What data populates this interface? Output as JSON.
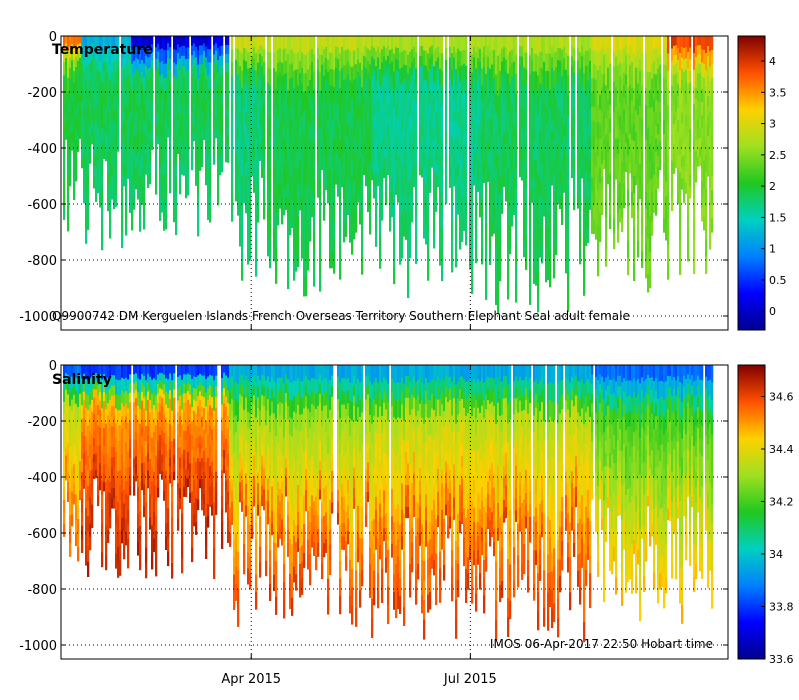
{
  "chart_data": [
    {
      "type": "heatmap",
      "panel": "top",
      "title": "Temperature",
      "annotation": "Q9900742 DM Kerguelen Islands French Overseas Territory Southern Elephant Seal adult female",
      "xlabel": "",
      "ylabel": "",
      "x_ticks": [
        "Apr 2015",
        "Jul 2015"
      ],
      "x_start": "2015-01-12",
      "x_end": "2015-10-16",
      "x_tick_dates": [
        "2015-04-01",
        "2015-07-01"
      ],
      "ylim": [
        -1050,
        0
      ],
      "y_ticks": [
        0,
        -200,
        -400,
        -600,
        -800,
        -1000
      ],
      "grid": true,
      "colorbar": {
        "min": -0.3,
        "max": 4.4,
        "ticks": [
          0,
          0.5,
          1,
          1.5,
          2,
          2.5,
          3,
          3.5,
          4
        ],
        "tick_labels": [
          "0",
          "0.5",
          "1",
          "1.5",
          "2",
          "2.5",
          "3",
          "3.5",
          "4"
        ]
      },
      "profile_segments": [
        {
          "start": "2015-01-12",
          "end": "2015-01-20",
          "surface": 3.6,
          "mid": 2.0,
          "deep": 1.9,
          "max_depth": 650
        },
        {
          "start": "2015-01-20",
          "end": "2015-02-10",
          "surface": 1.2,
          "mid": 1.9,
          "deep": 1.8,
          "max_depth": 700
        },
        {
          "start": "2015-02-10",
          "end": "2015-03-22",
          "surface": 0.1,
          "mid": 1.9,
          "deep": 1.8,
          "max_depth": 650
        },
        {
          "start": "2015-03-22",
          "end": "2015-04-05",
          "surface": 2.9,
          "mid": 1.7,
          "deep": 1.8,
          "max_depth": 800
        },
        {
          "start": "2015-04-05",
          "end": "2015-05-20",
          "surface": 2.8,
          "mid": 1.9,
          "deep": 1.9,
          "max_depth": 850
        },
        {
          "start": "2015-05-20",
          "end": "2015-07-05",
          "surface": 2.7,
          "mid": 1.6,
          "deep": 1.8,
          "max_depth": 850
        },
        {
          "start": "2015-07-05",
          "end": "2015-08-20",
          "surface": 2.7,
          "mid": 1.8,
          "deep": 1.9,
          "max_depth": 900
        },
        {
          "start": "2015-08-20",
          "end": "2015-09-20",
          "surface": 3.0,
          "mid": 2.3,
          "deep": 2.4,
          "max_depth": 850
        },
        {
          "start": "2015-09-20",
          "end": "2015-10-16",
          "surface": 3.9,
          "mid": 2.5,
          "deep": 2.5,
          "max_depth": 800
        }
      ]
    },
    {
      "type": "heatmap",
      "panel": "bottom",
      "title": "Salinity",
      "annotation": "IMOS 06-Apr-2017 22:50 Hobart time",
      "xlabel": "",
      "ylabel": "",
      "x_ticks": [
        "Apr 2015",
        "Jul 2015"
      ],
      "x_start": "2015-01-12",
      "x_end": "2015-10-16",
      "x_tick_dates": [
        "2015-04-01",
        "2015-07-01"
      ],
      "ylim": [
        -1050,
        0
      ],
      "y_ticks": [
        0,
        -200,
        -400,
        -600,
        -800,
        -1000
      ],
      "grid": true,
      "colorbar": {
        "min": 33.6,
        "max": 34.72,
        "ticks": [
          33.6,
          33.8,
          34,
          34.2,
          34.4,
          34.6
        ],
        "tick_labels": [
          "33.6",
          "33.8",
          "34",
          "34.2",
          "34.4",
          "34.6"
        ]
      },
      "profile_segments": [
        {
          "start": "2015-01-12",
          "end": "2015-01-20",
          "surface": 33.85,
          "mid": 34.35,
          "deep": 34.55,
          "max_depth": 650
        },
        {
          "start": "2015-01-20",
          "end": "2015-03-22",
          "surface": 33.8,
          "mid": 34.5,
          "deep": 34.65,
          "max_depth": 700
        },
        {
          "start": "2015-03-22",
          "end": "2015-05-20",
          "surface": 33.95,
          "mid": 34.3,
          "deep": 34.6,
          "max_depth": 850
        },
        {
          "start": "2015-05-20",
          "end": "2015-08-20",
          "surface": 33.95,
          "mid": 34.35,
          "deep": 34.6,
          "max_depth": 900
        },
        {
          "start": "2015-08-20",
          "end": "2015-10-16",
          "surface": 33.85,
          "mid": 34.2,
          "deep": 34.45,
          "max_depth": 850
        }
      ]
    }
  ]
}
